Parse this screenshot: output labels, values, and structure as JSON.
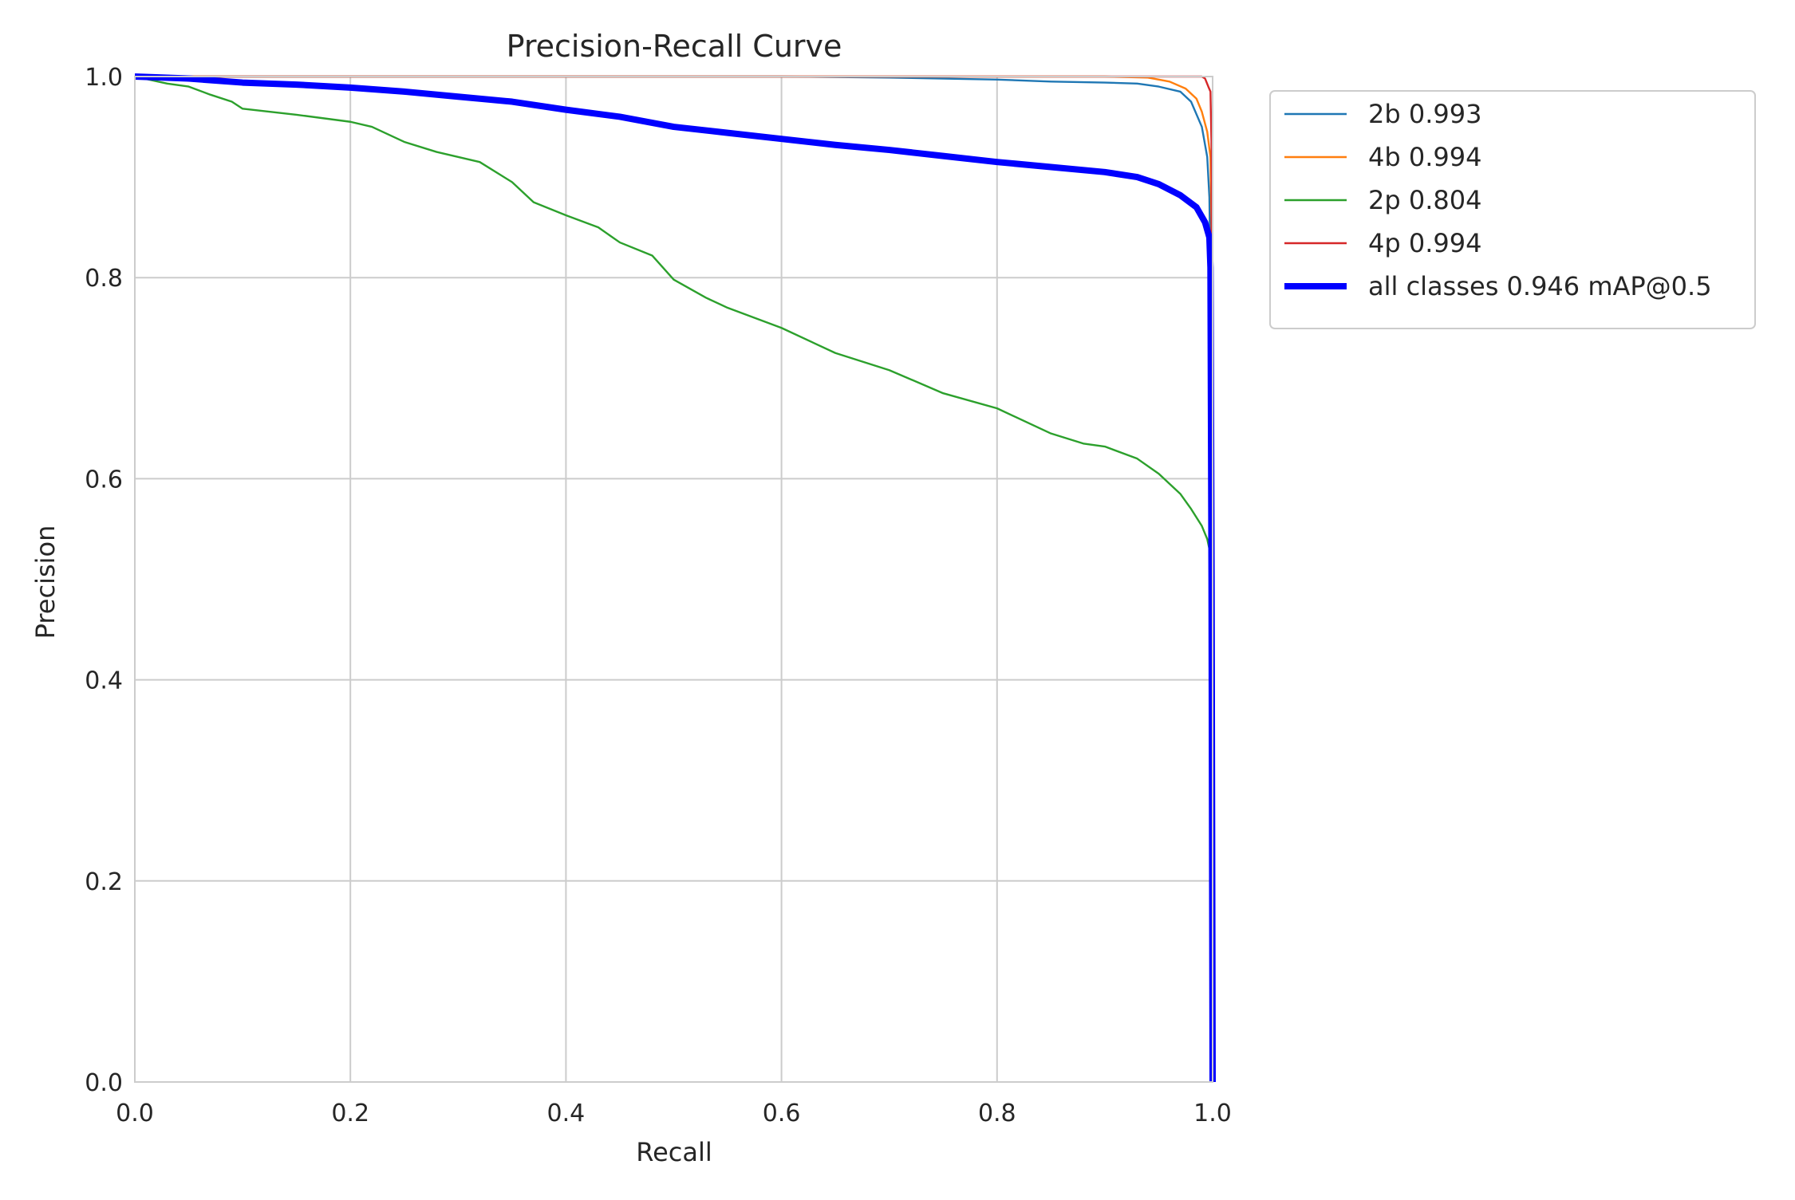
{
  "chart_data": {
    "type": "line",
    "title": "Precision-Recall Curve",
    "xlabel": "Recall",
    "ylabel": "Precision",
    "xlim": [
      0,
      1
    ],
    "ylim": [
      0,
      1
    ],
    "grid": true,
    "legend_position": "outside-upper-right",
    "x_ticks": [
      "0.0",
      "0.2",
      "0.4",
      "0.6",
      "0.8",
      "1.0"
    ],
    "y_ticks": [
      "0.0",
      "0.2",
      "0.4",
      "0.6",
      "0.8",
      "1.0"
    ],
    "series": [
      {
        "name": "2b 0.993",
        "color": "#1f77b4",
        "width": "thin",
        "points": [
          [
            0,
            1.0
          ],
          [
            0.3,
            1.0
          ],
          [
            0.6,
            1.0
          ],
          [
            0.7,
            0.999
          ],
          [
            0.8,
            0.997
          ],
          [
            0.85,
            0.995
          ],
          [
            0.9,
            0.994
          ],
          [
            0.93,
            0.993
          ],
          [
            0.95,
            0.99
          ],
          [
            0.97,
            0.985
          ],
          [
            0.98,
            0.975
          ],
          [
            0.99,
            0.95
          ],
          [
            0.995,
            0.92
          ],
          [
            0.997,
            0.88
          ],
          [
            0.998,
            0.8
          ],
          [
            0.999,
            0.5
          ],
          [
            0.9995,
            0.1
          ],
          [
            1.0,
            0.0
          ]
        ]
      },
      {
        "name": "4b 0.994",
        "color": "#ff7f0e",
        "width": "thin",
        "points": [
          [
            0,
            1.0
          ],
          [
            0.3,
            1.0
          ],
          [
            0.6,
            1.0
          ],
          [
            0.8,
            1.0
          ],
          [
            0.9,
            1.0
          ],
          [
            0.94,
            0.999
          ],
          [
            0.96,
            0.995
          ],
          [
            0.975,
            0.988
          ],
          [
            0.985,
            0.978
          ],
          [
            0.99,
            0.965
          ],
          [
            0.995,
            0.945
          ],
          [
            0.998,
            0.92
          ],
          [
            0.999,
            0.85
          ],
          [
            0.9995,
            0.5
          ],
          [
            1.0,
            0.0
          ]
        ]
      },
      {
        "name": "2p 0.804",
        "color": "#2ca02c",
        "width": "thin",
        "points": [
          [
            0,
            1.0
          ],
          [
            0.03,
            0.993
          ],
          [
            0.05,
            0.99
          ],
          [
            0.07,
            0.982
          ],
          [
            0.09,
            0.975
          ],
          [
            0.1,
            0.968
          ],
          [
            0.15,
            0.962
          ],
          [
            0.2,
            0.955
          ],
          [
            0.22,
            0.95
          ],
          [
            0.25,
            0.935
          ],
          [
            0.28,
            0.925
          ],
          [
            0.32,
            0.915
          ],
          [
            0.35,
            0.895
          ],
          [
            0.37,
            0.875
          ],
          [
            0.4,
            0.862
          ],
          [
            0.43,
            0.85
          ],
          [
            0.45,
            0.835
          ],
          [
            0.48,
            0.822
          ],
          [
            0.5,
            0.798
          ],
          [
            0.53,
            0.78
          ],
          [
            0.55,
            0.77
          ],
          [
            0.6,
            0.75
          ],
          [
            0.63,
            0.735
          ],
          [
            0.65,
            0.725
          ],
          [
            0.7,
            0.708
          ],
          [
            0.75,
            0.685
          ],
          [
            0.8,
            0.67
          ],
          [
            0.85,
            0.645
          ],
          [
            0.88,
            0.635
          ],
          [
            0.9,
            0.632
          ],
          [
            0.93,
            0.62
          ],
          [
            0.95,
            0.605
          ],
          [
            0.97,
            0.585
          ],
          [
            0.98,
            0.57
          ],
          [
            0.99,
            0.553
          ],
          [
            0.995,
            0.54
          ],
          [
            0.997,
            0.53
          ],
          [
            0.998,
            0.45
          ],
          [
            0.999,
            0.2
          ],
          [
            1.0,
            0.0
          ]
        ]
      },
      {
        "name": "4p 0.994",
        "color": "#d62728",
        "width": "thin",
        "points": [
          [
            0,
            1.0
          ],
          [
            0.5,
            1.0
          ],
          [
            0.9,
            1.0
          ],
          [
            0.99,
            1.0
          ],
          [
            0.993,
            0.998
          ],
          [
            0.996,
            0.99
          ],
          [
            0.998,
            0.985
          ],
          [
            0.999,
            0.93
          ],
          [
            0.9995,
            0.5
          ],
          [
            1.0,
            0.0
          ]
        ]
      },
      {
        "name": "all classes 0.946 mAP@0.5",
        "color": "#0000ff",
        "width": "thick",
        "points": [
          [
            0,
            1.0
          ],
          [
            0.05,
            0.998
          ],
          [
            0.1,
            0.994
          ],
          [
            0.15,
            0.992
          ],
          [
            0.2,
            0.989
          ],
          [
            0.25,
            0.985
          ],
          [
            0.3,
            0.98
          ],
          [
            0.35,
            0.975
          ],
          [
            0.4,
            0.967
          ],
          [
            0.45,
            0.96
          ],
          [
            0.5,
            0.95
          ],
          [
            0.55,
            0.944
          ],
          [
            0.6,
            0.938
          ],
          [
            0.65,
            0.932
          ],
          [
            0.7,
            0.927
          ],
          [
            0.75,
            0.921
          ],
          [
            0.8,
            0.915
          ],
          [
            0.85,
            0.91
          ],
          [
            0.9,
            0.905
          ],
          [
            0.93,
            0.9
          ],
          [
            0.95,
            0.893
          ],
          [
            0.97,
            0.882
          ],
          [
            0.985,
            0.87
          ],
          [
            0.993,
            0.855
          ],
          [
            0.997,
            0.84
          ],
          [
            0.998,
            0.81
          ],
          [
            0.999,
            0.5
          ],
          [
            1.0,
            0.0
          ]
        ]
      }
    ]
  }
}
